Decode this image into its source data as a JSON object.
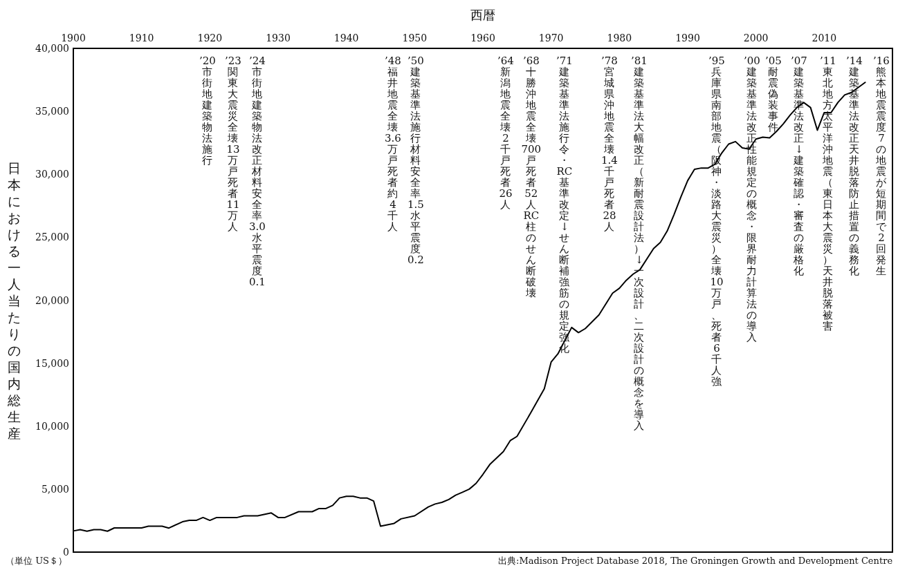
{
  "chart_data": {
    "type": "line",
    "xlabel": "西暦",
    "ylabel": "日本における一人当たりの国内総生産",
    "x": [
      1900,
      1901,
      1902,
      1903,
      1904,
      1905,
      1906,
      1910,
      1911,
      1913,
      1914,
      1916,
      1917,
      1918,
      1919,
      1920,
      1921,
      1924,
      1925,
      1927,
      1929,
      1930,
      1931,
      1933,
      1935,
      1936,
      1937,
      1938,
      1939,
      1940,
      1941,
      1942,
      1943,
      1944,
      1945,
      1947,
      1948,
      1950,
      1952,
      1953,
      1954,
      1955,
      1956,
      1957,
      1958,
      1959,
      1960,
      1961,
      1963,
      1964,
      1965,
      1967,
      1969,
      1970,
      1971,
      1973,
      1974,
      1975,
      1977,
      1979,
      1980,
      1981,
      1982,
      1983,
      1985,
      1986,
      1987,
      1988,
      1989,
      1990,
      1991,
      1992,
      1993,
      1994,
      1995,
      1996,
      1997,
      1998,
      1999,
      2000,
      2001,
      2002,
      2003,
      2004,
      2005,
      2006,
      2007,
      2008,
      2009,
      2010,
      2011,
      2012,
      2013,
      2014,
      2015,
      2016
    ],
    "series": [
      {
        "color": "#000000",
        "values": [
          1680,
          1780,
          1660,
          1780,
          1780,
          1660,
          1920,
          1920,
          2060,
          2060,
          1910,
          2410,
          2520,
          2520,
          2750,
          2520,
          2750,
          2750,
          2880,
          2880,
          3110,
          2750,
          2750,
          3210,
          3210,
          3460,
          3460,
          3710,
          4300,
          4430,
          4430,
          4300,
          4300,
          4050,
          2060,
          2280,
          2640,
          2880,
          3590,
          3820,
          3950,
          4180,
          4520,
          4750,
          5000,
          5460,
          6170,
          6950,
          7980,
          8850,
          9190,
          11050,
          12980,
          15100,
          15750,
          17840,
          17430,
          17750,
          18830,
          20560,
          20950,
          21580,
          22070,
          22420,
          24100,
          24600,
          25500,
          26800,
          28200,
          29500,
          30400,
          30500,
          30500,
          30800,
          31700,
          32400,
          32600,
          32100,
          32000,
          32800,
          32950,
          32900,
          33400,
          34000,
          34700,
          35300,
          35700,
          35300,
          33500,
          34900,
          34900,
          35700,
          36300,
          36500,
          36900,
          37300
        ]
      }
    ],
    "xlim": [
      1900,
      2020
    ],
    "xticks": [
      1900,
      1910,
      1920,
      1930,
      1940,
      1950,
      1960,
      1970,
      1980,
      1990,
      2000,
      2010
    ],
    "ylim": [
      0,
      40000
    ],
    "yticks": [
      {
        "value": 0,
        "label": "0"
      },
      {
        "value": 5000,
        "label": "5,000"
      },
      {
        "value": 10000,
        "label": "10,000"
      },
      {
        "value": 15000,
        "label": "15,000"
      },
      {
        "value": 20000,
        "label": "20,000"
      },
      {
        "value": 25000,
        "label": "25,000"
      },
      {
        "value": 30000,
        "label": "30,000"
      },
      {
        "value": 35000,
        "label": "35,000"
      },
      {
        "value": 40000,
        "label": "40,000"
      }
    ],
    "grid": false,
    "marker": "none",
    "line_style": "solid",
    "annotations": [
      "’20 市街地建築物法施行",
      "’23 関東大震災全壊13万戸死者11万人",
      "’24 市街地建築物法改正材料安全率3.0水平震度0.1",
      "’48 福井地震全壊3.6万戸死者約4千人",
      "’50 建築基準法施行材料安全率1.5水平震度0.2",
      "’64 新潟地震全壊2千戸死者26人",
      "’68 十勝沖地震全壊700戸死者52人RC柱のせん断破壊",
      "’71 建築基準法施行令・RC基準改定↓せん断補強筋の規定強化",
      "’78 宮城県沖地震全壊1.4千戸死者28人",
      "’81 建築基準法大幅改正（新耐震設計法）↓一次設計、二次設計の概念を導入",
      "’95 兵庫県南部地震（阪神・淡路大震災）全壊10万戸、死者6千人強",
      "’00 建築基準法改正性能規定の概念・限界耐力計算法の導入",
      "’05 耐震偽装事件",
      "’07 建築基準法改正↓建築確認・審査の厳格化",
      "’11 東北地方太平洋沖地震（東日本大震災）天井脱落被害",
      "’14 建築基準法改正天井脱落防止措置の義務化",
      "’16 熊本地震震度7の地震が短期間で2回発生",
      "（単位 US＄）",
      "出典:Madison Project Database 2018, The Groningen Growth and Development Centre"
    ]
  }
}
